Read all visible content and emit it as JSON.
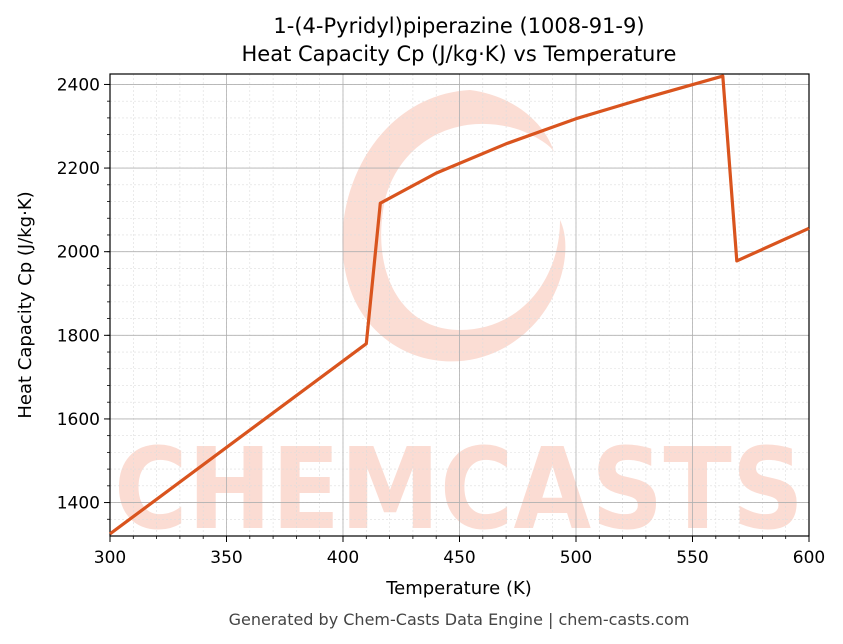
{
  "chart_data": {
    "type": "line",
    "title_line1": "1-(4-Pyridyl)piperazine (1008-91-9)",
    "title_line2": "Heat Capacity Cp (J/kg·K) vs Temperature",
    "xlabel": "Temperature (K)",
    "ylabel": "Heat Capacity Cp (J/kg·K)",
    "xlim": [
      300,
      600
    ],
    "ylim": [
      1320,
      2425
    ],
    "xticks": [
      300,
      350,
      400,
      450,
      500,
      550,
      600
    ],
    "yticks": [
      1400,
      1600,
      1800,
      2000,
      2200,
      2400
    ],
    "grid": true,
    "series": [
      {
        "color": "#d9541e",
        "x": [
          300,
          410,
          416,
          440,
          470,
          500,
          530,
          563,
          569,
          600
        ],
        "y": [
          1325,
          1780,
          2116,
          2188,
          2258,
          2318,
          2368,
          2420,
          1978,
          2056
        ]
      }
    ]
  },
  "watermark": {
    "text": "CHEMCASTS",
    "color": "#fbd9cf"
  },
  "footer": "Generated by Chem-Casts Data Engine | chem-casts.com"
}
